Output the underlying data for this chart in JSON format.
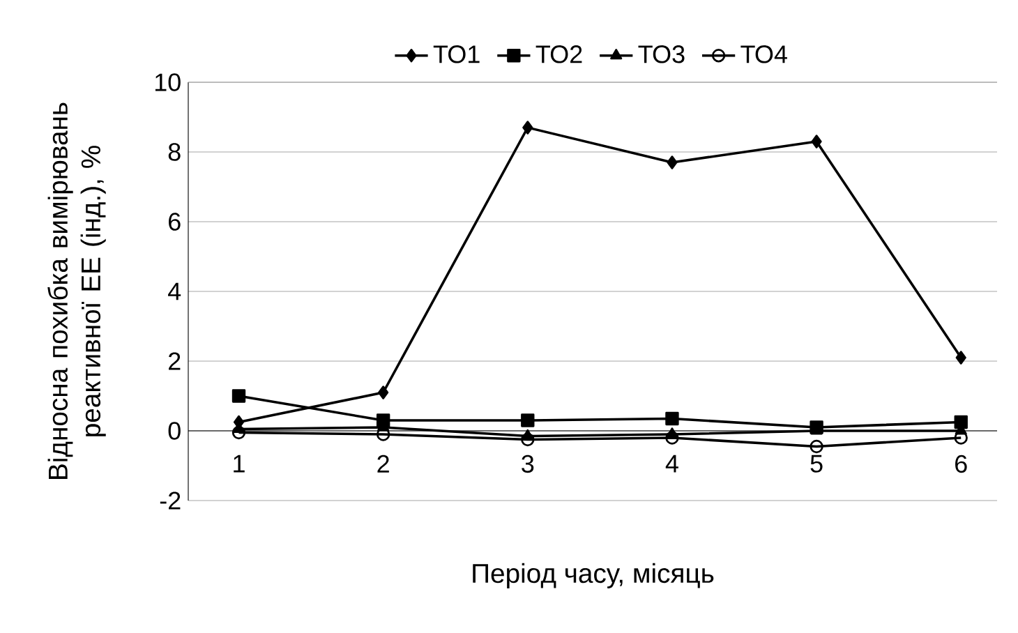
{
  "chart_data": {
    "type": "line",
    "xlabel": "Період часу, місяць",
    "ylabel": "Відносна похибка вимірювань реактивної ЕЕ (інд.), %",
    "categories": [
      "1",
      "2",
      "3",
      "4",
      "5",
      "6"
    ],
    "series": [
      {
        "name": "ТО1",
        "color": "#000000",
        "marker": "diamond",
        "values": [
          0.25,
          1.1,
          8.7,
          7.7,
          8.3,
          2.1
        ]
      },
      {
        "name": "ТО2",
        "color": "#000000",
        "marker": "square",
        "values": [
          1.0,
          0.3,
          0.3,
          0.35,
          0.1,
          0.25
        ]
      },
      {
        "name": "ТО3",
        "color": "#000000",
        "marker": "triangle",
        "values": [
          0.05,
          0.1,
          -0.15,
          -0.1,
          0.0,
          0.0
        ]
      },
      {
        "name": "ТО4",
        "color": "#000000",
        "marker": "circle",
        "values": [
          -0.05,
          -0.1,
          -0.25,
          -0.2,
          -0.45,
          -0.2
        ]
      }
    ],
    "ylim": [
      -2,
      10
    ],
    "yticks": [
      -2,
      0,
      2,
      4,
      6,
      8,
      10
    ],
    "grid": "y",
    "legend": "top",
    "line_style": "solid"
  }
}
